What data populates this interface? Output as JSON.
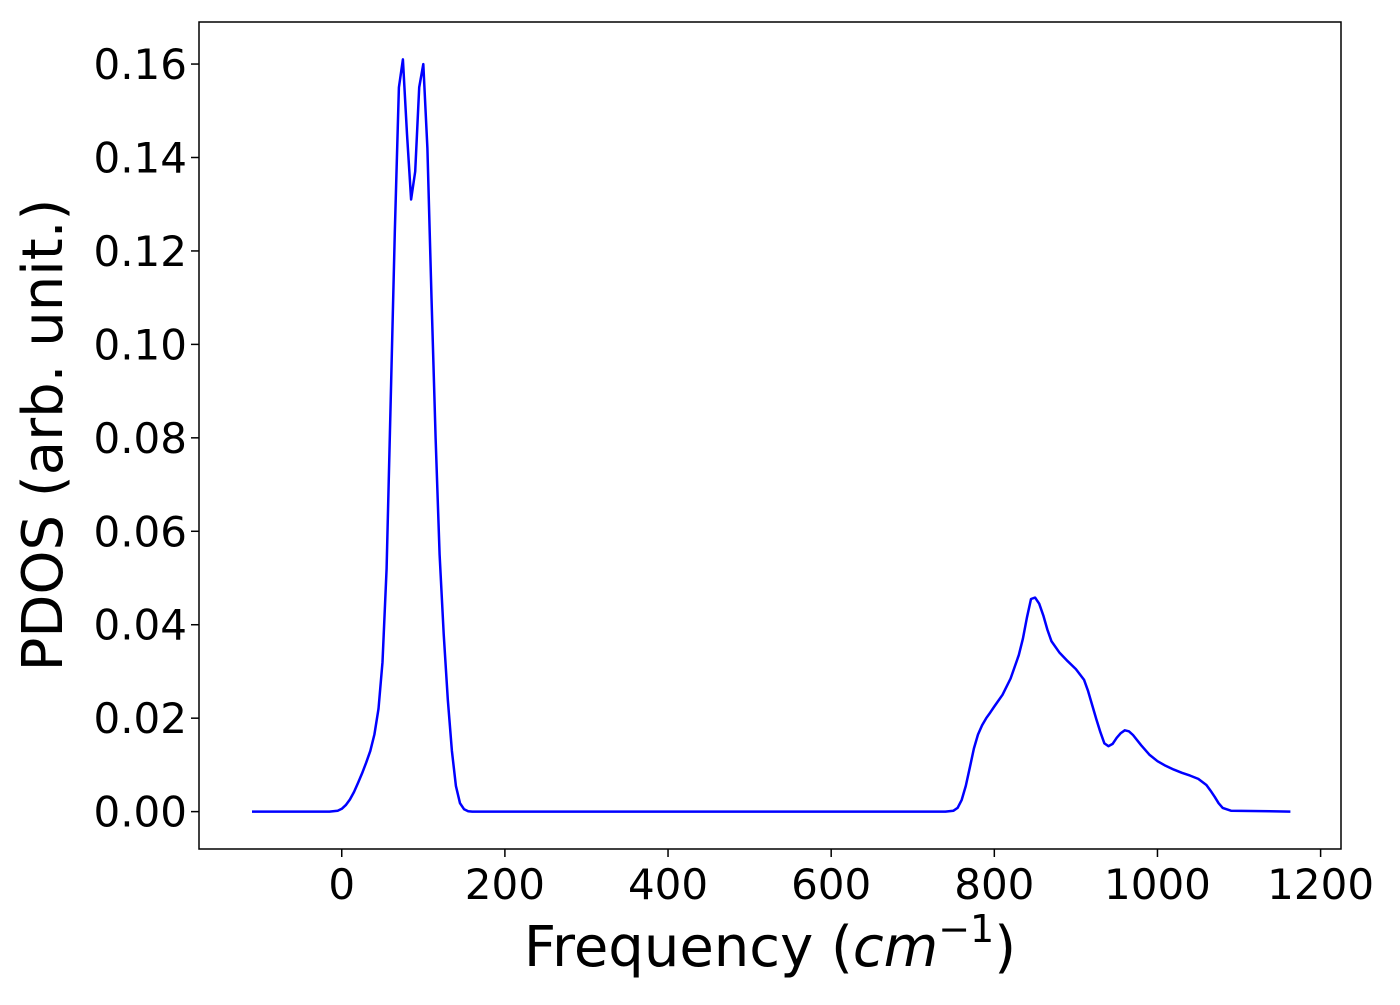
{
  "chart_data": {
    "type": "line",
    "title": "",
    "xlabel": "Frequency (",
    "xlabel_math": "cm",
    "xlabel_sup": "−1",
    "xlabel_close": ")",
    "ylabel": "PDOS (arb. unit.)",
    "xlim": [
      -175,
      1225
    ],
    "ylim": [
      -0.008,
      0.169
    ],
    "xticks": [
      0,
      200,
      400,
      600,
      800,
      1000,
      1200
    ],
    "xtick_labels": [
      "0",
      "200",
      "400",
      "600",
      "800",
      "1000",
      "1200"
    ],
    "yticks": [
      0.0,
      0.02,
      0.04,
      0.06,
      0.08,
      0.1,
      0.12,
      0.14,
      0.16
    ],
    "ytick_labels": [
      "0.00",
      "0.02",
      "0.04",
      "0.06",
      "0.08",
      "0.10",
      "0.12",
      "0.14",
      "0.16"
    ],
    "grid": false,
    "legend": "none",
    "series": [
      {
        "color": "#0000ff",
        "x": [
          -110,
          -30,
          -15,
          -5,
          0,
          5,
          10,
          15,
          20,
          25,
          30,
          35,
          40,
          45,
          50,
          55,
          60,
          65,
          70,
          75,
          80,
          85,
          90,
          95,
          100,
          105,
          110,
          115,
          120,
          125,
          130,
          135,
          140,
          145,
          150,
          155,
          160,
          165,
          170,
          175,
          180,
          185,
          190,
          200,
          300,
          400,
          500,
          600,
          700,
          740,
          750,
          755,
          760,
          765,
          770,
          775,
          780,
          785,
          790,
          795,
          800,
          810,
          820,
          830,
          835,
          840,
          845,
          850,
          855,
          860,
          865,
          870,
          880,
          890,
          900,
          910,
          915,
          920,
          925,
          930,
          935,
          940,
          945,
          950,
          955,
          960,
          965,
          970,
          980,
          990,
          1000,
          1010,
          1020,
          1030,
          1040,
          1050,
          1060,
          1065,
          1070,
          1075,
          1080,
          1090,
          1163
        ],
        "y": [
          0,
          0,
          0,
          0.0002,
          0.0006,
          0.0014,
          0.0026,
          0.0042,
          0.0062,
          0.0082,
          0.0105,
          0.013,
          0.0165,
          0.022,
          0.032,
          0.052,
          0.088,
          0.124,
          0.155,
          0.161,
          0.145,
          0.131,
          0.137,
          0.155,
          0.16,
          0.142,
          0.11,
          0.08,
          0.055,
          0.038,
          0.024,
          0.013,
          0.0055,
          0.0018,
          0.0005,
          0.0001,
          0,
          0,
          0,
          0,
          0,
          0,
          0,
          0,
          0,
          0,
          0,
          0,
          0,
          0,
          0.0002,
          0.0008,
          0.0025,
          0.0055,
          0.0095,
          0.0135,
          0.0165,
          0.0185,
          0.02,
          0.0212,
          0.0225,
          0.025,
          0.0285,
          0.0335,
          0.037,
          0.0415,
          0.0455,
          0.0458,
          0.0445,
          0.042,
          0.039,
          0.0365,
          0.034,
          0.0322,
          0.0305,
          0.0282,
          0.0258,
          0.0228,
          0.0198,
          0.017,
          0.0146,
          0.014,
          0.0145,
          0.0158,
          0.0168,
          0.0174,
          0.0172,
          0.0164,
          0.0142,
          0.0122,
          0.0108,
          0.0098,
          0.009,
          0.0083,
          0.0077,
          0.007,
          0.0057,
          0.0045,
          0.0032,
          0.0018,
          0.0008,
          0.0002,
          0
        ]
      }
    ]
  }
}
